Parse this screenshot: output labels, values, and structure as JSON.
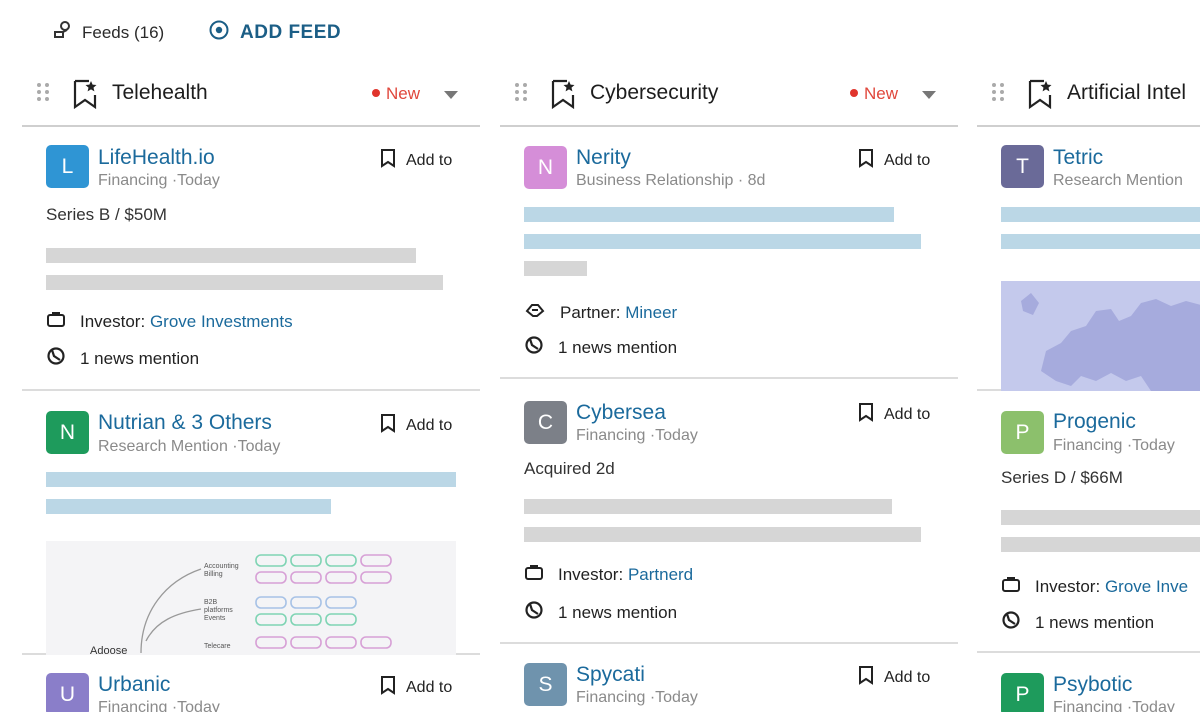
{
  "topbar": {
    "feeds_label": "Feeds (16)",
    "add_feed_label": "ADD FEED"
  },
  "columns": [
    {
      "title": "Telehealth",
      "new_label": "New",
      "cards": [
        {
          "avatar": "L",
          "color": "#2f95d4",
          "name": "LifeHealth.io",
          "meta": "Financing ·Today",
          "add_to": "Add to",
          "detail": "Series B / $50M",
          "relation": "Investor:",
          "relation_value": "Grove Investments",
          "mentions": "1 news mention"
        },
        {
          "avatar": "N",
          "color": "#1e9b5c",
          "name": "Nutrian",
          "name_extra": "& 3 Others",
          "meta": "Research Mention ·Today",
          "add_to": "Add to"
        },
        {
          "avatar": "U",
          "color": "#8a7ec9",
          "name": "Urbanic",
          "meta": "Financing ·Today",
          "add_to": "Add to"
        }
      ]
    },
    {
      "title": "Cybersecurity",
      "new_label": "New",
      "cards": [
        {
          "avatar": "N",
          "color": "#d58ed8",
          "name": "Nerity",
          "meta": "Business Relationship · 8d",
          "add_to": "Add to",
          "relation": "Partner:",
          "relation_value": "Mineer",
          "mentions": "1 news mention"
        },
        {
          "avatar": "C",
          "color": "#7c8088",
          "name": "Cybersea",
          "meta": "Financing ·Today",
          "add_to": "Add to",
          "detail": "Acquired 2d",
          "relation": "Investor:",
          "relation_value": "Partnerd",
          "mentions": "1 news mention"
        },
        {
          "avatar": "S",
          "color": "#6f93ad",
          "name": "Spycati",
          "meta": "Financing ·Today",
          "add_to": "Add to"
        }
      ]
    },
    {
      "title": "Artificial Intel",
      "cards": [
        {
          "avatar": "T",
          "color": "#6a6a98",
          "name": "Tetric",
          "meta": "Research Mention"
        },
        {
          "avatar": "P",
          "color": "#8cc06c",
          "name": "Progenic",
          "meta": "Financing ·Today",
          "detail": "Series D / $66M",
          "relation": "Investor:",
          "relation_value": "Grove Inve",
          "mentions": "1 news mention"
        },
        {
          "avatar": "P",
          "color": "#1e9b5c",
          "name": "Psybotic",
          "meta": "Financing ·Today"
        }
      ]
    }
  ],
  "diagram_labels": {
    "a": "Accounting Billing",
    "b": "B2B platforms Events",
    "c": "Telecare",
    "root": "Adoose"
  },
  "icons": {
    "feeds": "feeds-icon",
    "add": "add-circle-icon",
    "drag": "drag-handle-icon",
    "fav": "bookmark-star-icon",
    "addto": "bookmark-icon",
    "investor": "briefcase-icon",
    "partner": "handshake-icon",
    "news": "news-icon"
  }
}
